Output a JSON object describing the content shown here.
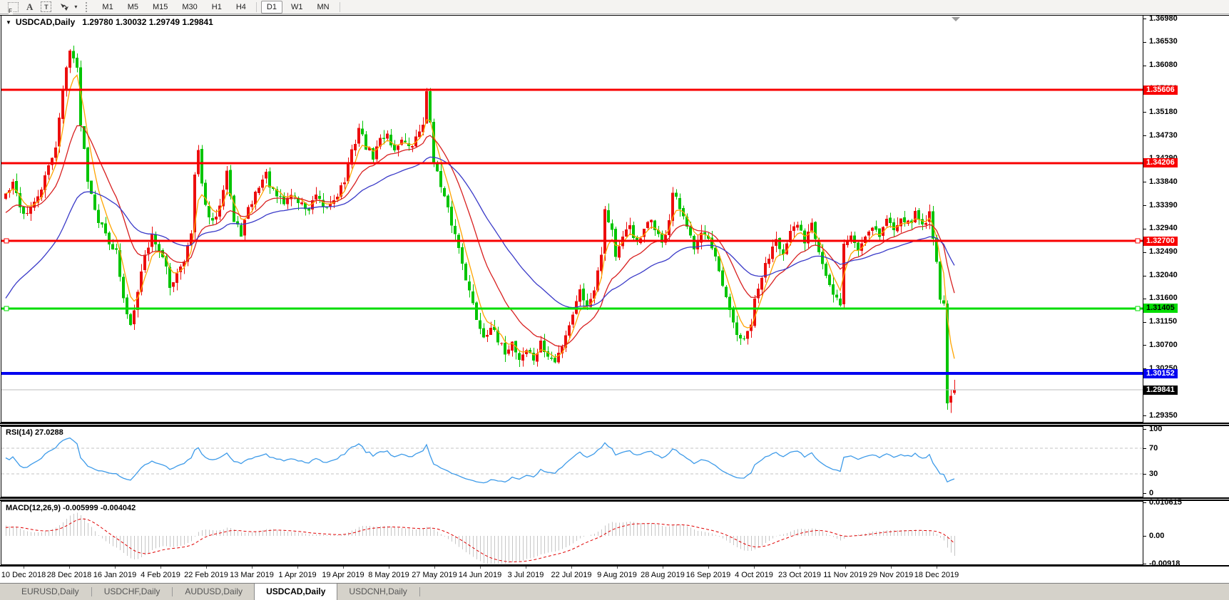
{
  "toolbar": {
    "icons": [
      {
        "name": "fibo-grid-icon",
        "glyph": "F"
      },
      {
        "name": "text-label-icon",
        "glyph": "A"
      },
      {
        "name": "text-box-icon",
        "glyph": "T"
      },
      {
        "name": "arrow-objects-icon",
        "glyph": "arrows"
      },
      {
        "name": "dropdown-caret-icon",
        "glyph": "▾"
      }
    ],
    "timeframes": [
      "M1",
      "M5",
      "M15",
      "M30",
      "H1",
      "H4",
      "D1",
      "W1",
      "MN"
    ],
    "active_timeframe": "D1"
  },
  "chart": {
    "title": "USDCAD,Daily",
    "quote_text": "1.29780 1.30032 1.29749 1.29841",
    "ohlc": {
      "open": "1.29780",
      "high": "1.30032",
      "low": "1.29749",
      "close": "1.29841"
    }
  },
  "price_axis": {
    "ticks": [
      "1.36980",
      "1.36530",
      "1.36080",
      "1.35630",
      "1.35180",
      "1.34730",
      "1.34290",
      "1.33840",
      "1.33390",
      "1.32940",
      "1.32490",
      "1.32040",
      "1.31600",
      "1.31150",
      "1.30700",
      "1.30250",
      "1.29800",
      "1.29350"
    ]
  },
  "hlines": [
    {
      "price": 1.35606,
      "label": "1.35606",
      "color": "#F80000",
      "text_color": "#FFFFFF",
      "thickness": 3,
      "selected": false
    },
    {
      "price": 1.34206,
      "label": "1.34206",
      "color": "#F80000",
      "text_color": "#FFFFFF",
      "thickness": 3,
      "selected": false
    },
    {
      "price": 1.327,
      "label": "1.32700",
      "color": "#F80000",
      "text_color": "#FFFFFF",
      "thickness": 3,
      "selected": true
    },
    {
      "price": 1.31405,
      "label": "1.31405",
      "color": "#00DD00",
      "text_color": "#000000",
      "thickness": 3,
      "selected": true
    },
    {
      "price": 1.30152,
      "label": "1.30152",
      "color": "#0000F0",
      "text_color": "#FFFFFF",
      "thickness": 4,
      "selected": false
    }
  ],
  "current_price": {
    "label": "1.29841",
    "value": 1.29841,
    "line_color": "#BDBDBD",
    "label_bg": "#000000",
    "label_text": "#FFFFFF"
  },
  "chart_data": {
    "type": "candlestick",
    "symbol": "USDCAD",
    "timeframe": "Daily",
    "note": "Daily candles 10 Dec 2018 - end Dec 2019 reconstructed from pixels; closes interpolated between [candle_index, close] anchors. Up candles red, down candles green.",
    "candle_count": 267,
    "up_color": "#EC0E0E",
    "down_color": "#00C400",
    "y_range": {
      "top": 1.3698,
      "bottom": 1.2935
    },
    "x_labels": [
      "10 Dec 2018",
      "28 Dec 2018",
      "16 Jan 2019",
      "4 Feb 2019",
      "22 Feb 2019",
      "13 Mar 2019",
      "1 Apr 2019",
      "19 Apr 2019",
      "8 May 2019",
      "27 May 2019",
      "14 Jun 2019",
      "3 Jul 2019",
      "22 Jul 2019",
      "9 Aug 2019",
      "28 Aug 2019",
      "16 Sep 2019",
      "4 Oct 2019",
      "23 Oct 2019",
      "11 Nov 2019",
      "29 Nov 2019",
      "18 Dec 2019"
    ],
    "close_anchors": [
      [
        0,
        1.336
      ],
      [
        2,
        1.3378
      ],
      [
        5,
        1.3322
      ],
      [
        8,
        1.334
      ],
      [
        11,
        1.339
      ],
      [
        14,
        1.3455
      ],
      [
        16,
        1.356
      ],
      [
        18,
        1.3645
      ],
      [
        20,
        1.3598
      ],
      [
        21,
        1.35
      ],
      [
        23,
        1.3392
      ],
      [
        26,
        1.331
      ],
      [
        29,
        1.3272
      ],
      [
        31,
        1.3248
      ],
      [
        33,
        1.3155
      ],
      [
        35,
        1.311
      ],
      [
        37,
        1.318
      ],
      [
        39,
        1.3242
      ],
      [
        41,
        1.3282
      ],
      [
        43,
        1.3255
      ],
      [
        45,
        1.3215
      ],
      [
        46,
        1.318
      ],
      [
        48,
        1.3212
      ],
      [
        50,
        1.3238
      ],
      [
        52,
        1.3282
      ],
      [
        53,
        1.3395
      ],
      [
        54,
        1.3438
      ],
      [
        55,
        1.3388
      ],
      [
        56,
        1.3332
      ],
      [
        58,
        1.3302
      ],
      [
        60,
        1.3345
      ],
      [
        62,
        1.3408
      ],
      [
        64,
        1.3305
      ],
      [
        66,
        1.3286
      ],
      [
        68,
        1.3328
      ],
      [
        71,
        1.3378
      ],
      [
        73,
        1.3398
      ],
      [
        75,
        1.3362
      ],
      [
        78,
        1.3342
      ],
      [
        80,
        1.3362
      ],
      [
        82,
        1.3346
      ],
      [
        85,
        1.333
      ],
      [
        87,
        1.3356
      ],
      [
        89,
        1.333
      ],
      [
        91,
        1.3342
      ],
      [
        93,
        1.3362
      ],
      [
        95,
        1.3386
      ],
      [
        97,
        1.344
      ],
      [
        99,
        1.3488
      ],
      [
        101,
        1.3452
      ],
      [
        103,
        1.3432
      ],
      [
        105,
        1.3465
      ],
      [
        107,
        1.3478
      ],
      [
        109,
        1.3442
      ],
      [
        111,
        1.347
      ],
      [
        113,
        1.3446
      ],
      [
        115,
        1.3466
      ],
      [
        117,
        1.35
      ],
      [
        118,
        1.3552
      ],
      [
        119,
        1.35
      ],
      [
        120,
        1.3428
      ],
      [
        122,
        1.3372
      ],
      [
        124,
        1.3328
      ],
      [
        126,
        1.3282
      ],
      [
        128,
        1.3232
      ],
      [
        130,
        1.3172
      ],
      [
        132,
        1.3122
      ],
      [
        134,
        1.3088
      ],
      [
        136,
        1.3108
      ],
      [
        138,
        1.3074
      ],
      [
        140,
        1.3058
      ],
      [
        142,
        1.3076
      ],
      [
        144,
        1.3044
      ],
      [
        146,
        1.3062
      ],
      [
        148,
        1.3042
      ],
      [
        150,
        1.3072
      ],
      [
        152,
        1.3048
      ],
      [
        154,
        1.3036
      ],
      [
        156,
        1.3072
      ],
      [
        158,
        1.3112
      ],
      [
        160,
        1.3152
      ],
      [
        161,
        1.3182
      ],
      [
        163,
        1.3142
      ],
      [
        165,
        1.3182
      ],
      [
        167,
        1.3252
      ],
      [
        168,
        1.333
      ],
      [
        170,
        1.3292
      ],
      [
        171,
        1.3242
      ],
      [
        173,
        1.3272
      ],
      [
        175,
        1.3302
      ],
      [
        177,
        1.3262
      ],
      [
        179,
        1.3288
      ],
      [
        181,
        1.3312
      ],
      [
        183,
        1.3282
      ],
      [
        184,
        1.3262
      ],
      [
        186,
        1.3312
      ],
      [
        187,
        1.3362
      ],
      [
        189,
        1.3332
      ],
      [
        191,
        1.3292
      ],
      [
        193,
        1.3262
      ],
      [
        195,
        1.3292
      ],
      [
        197,
        1.3272
      ],
      [
        199,
        1.3232
      ],
      [
        201,
        1.3182
      ],
      [
        203,
        1.3132
      ],
      [
        205,
        1.3092
      ],
      [
        207,
        1.3076
      ],
      [
        209,
        1.3112
      ],
      [
        210,
        1.3152
      ],
      [
        212,
        1.3202
      ],
      [
        214,
        1.3242
      ],
      [
        216,
        1.3282
      ],
      [
        218,
        1.3242
      ],
      [
        220,
        1.3282
      ],
      [
        222,
        1.3302
      ],
      [
        224,
        1.3272
      ],
      [
        226,
        1.3312
      ],
      [
        228,
        1.3252
      ],
      [
        230,
        1.3202
      ],
      [
        232,
        1.3162
      ],
      [
        234,
        1.3152
      ],
      [
        235,
        1.3262
      ],
      [
        237,
        1.3282
      ],
      [
        239,
        1.3252
      ],
      [
        241,
        1.3282
      ],
      [
        243,
        1.3302
      ],
      [
        245,
        1.3282
      ],
      [
        247,
        1.3312
      ],
      [
        249,
        1.3292
      ],
      [
        251,
        1.3322
      ],
      [
        253,
        1.3302
      ],
      [
        255,
        1.3322
      ],
      [
        257,
        1.3302
      ],
      [
        259,
        1.3322
      ],
      [
        260,
        1.3282
      ],
      [
        261,
        1.3232
      ],
      [
        262,
        1.3162
      ],
      [
        263,
        1.315
      ],
      [
        264,
        1.2958
      ],
      [
        265,
        1.2972
      ],
      [
        266,
        1.29841
      ]
    ],
    "last_candle": {
      "open": 1.2978,
      "high": 1.30032,
      "low": 1.29749,
      "close": 1.29841
    },
    "moving_averages": [
      {
        "name": "fast-ma",
        "period": 5,
        "color": "#FFA400"
      },
      {
        "name": "medium-ma",
        "period": 16,
        "color": "#D81F1F"
      },
      {
        "name": "slow-ma",
        "period": 40,
        "color": "#3A3AC8"
      }
    ]
  },
  "indicators": {
    "rsi": {
      "name": "RSI(14)",
      "value": "27.0288",
      "period": 14,
      "line_color": "#3E9BE9",
      "levels": [
        70,
        30
      ],
      "axis_labels": [
        "100",
        "70",
        "30",
        "0"
      ],
      "axis_values": [
        100,
        70,
        30,
        0
      ]
    },
    "macd": {
      "name": "MACD(12,26,9)",
      "macd_value": "-0.005999",
      "signal_value": "-0.004042",
      "axis_labels": [
        "0.010615",
        "0.00",
        "-0.00918"
      ],
      "axis_values": [
        0.010615,
        0,
        -0.00918
      ],
      "histogram_color": "#C6C6C6",
      "signal_color": "#E00000"
    }
  },
  "tabs": [
    {
      "label": "EURUSD,Daily",
      "active": false
    },
    {
      "label": "USDCHF,Daily",
      "active": false
    },
    {
      "label": "AUDUSD,Daily",
      "active": false
    },
    {
      "label": "USDCAD,Daily",
      "active": true
    },
    {
      "label": "USDCNH,Daily",
      "active": false
    }
  ]
}
